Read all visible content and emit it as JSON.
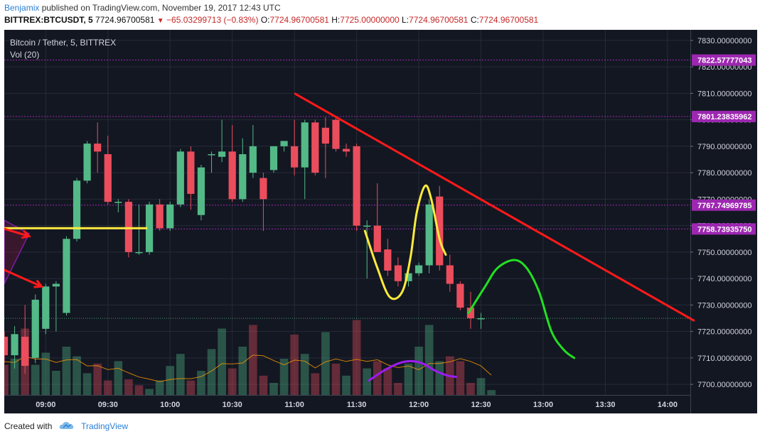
{
  "header": {
    "user": "Benjamix",
    "published_text": "published on TradingView.com, November 19, 2017 12:43 UTC",
    "symbol": "BITTREX:BTCUSDT, 5",
    "last": "7724.96700581",
    "change": "−65.03299713 (−0.83%)",
    "o_label": "O:",
    "o_value": "7724.96700581",
    "h_label": "H:",
    "h_value": "7725.00000000",
    "l_label": "L:",
    "l_value": "7724.96700581",
    "c_label": "C:",
    "c_value": "7724.96700581"
  },
  "legend": {
    "title": "Bitcoin / Tether, 5, BITTREX",
    "volume": "Vol (20)"
  },
  "footer": {
    "created_with": "Created with",
    "brand": "TradingView",
    "logo_icon": "tradingview-cloud-icon"
  },
  "colors": {
    "background": "#131722",
    "up": "#53b987",
    "down": "#eb4d5c",
    "grid": "#262b38",
    "level_line": "#9c27b0",
    "price_tag": "#9c27b0",
    "trend_red": "#ff1a1a",
    "yellow": "#ffeb3b",
    "green": "#22e022",
    "purple": "#9c1cf0"
  },
  "chart_data": {
    "type": "candlestick",
    "symbol": "BTCUSDT",
    "exchange": "BITTREX",
    "interval_minutes": 5,
    "y_axis": {
      "ylim": [
        7696,
        7834
      ],
      "ticks": [
        "7700.00000000",
        "7710.00000000",
        "7720.00000000",
        "7730.00000000",
        "7740.00000000",
        "7750.00000000",
        "7760.00000000",
        "7770.00000000",
        "7780.00000000",
        "7790.00000000",
        "7800.00000000",
        "7810.00000000",
        "7820.00000000",
        "7830.00000000"
      ],
      "tick_values": [
        7700,
        7710,
        7720,
        7730,
        7740,
        7750,
        7760,
        7770,
        7780,
        7790,
        7800,
        7810,
        7820,
        7830
      ]
    },
    "x_axis": {
      "ticks": [
        "09:00",
        "09:30",
        "10:00",
        "10:30",
        "11:00",
        "11:30",
        "12:00",
        "12:30",
        "13:00",
        "13:30",
        "14:00"
      ],
      "tick_minutes": [
        540,
        570,
        600,
        630,
        660,
        690,
        720,
        750,
        780,
        810,
        840
      ],
      "xlim_minutes": [
        520,
        851
      ]
    },
    "horizontal_levels": [
      {
        "price": 7822.57777043,
        "label": "7822.57777043"
      },
      {
        "price": 7801.23835962,
        "label": "7801.23835962"
      },
      {
        "price": 7767.74969785,
        "label": "7767.74969785"
      },
      {
        "price": 7758.7393575,
        "label": "7758.73935750"
      }
    ],
    "last_price": 7724.96700581,
    "candles": [
      {
        "t": 520,
        "o": 7718,
        "h": 7720,
        "l": 7708,
        "c": 7711
      },
      {
        "t": 525,
        "o": 7711,
        "h": 7722,
        "l": 7706,
        "c": 7719
      },
      {
        "t": 530,
        "o": 7718,
        "h": 7730,
        "l": 7704,
        "c": 7707
      },
      {
        "t": 535,
        "o": 7710,
        "h": 7734,
        "l": 7708,
        "c": 7732
      },
      {
        "t": 540,
        "o": 7721,
        "h": 7738,
        "l": 7719,
        "c": 7737
      },
      {
        "t": 545,
        "o": 7737,
        "h": 7739,
        "l": 7720,
        "c": 7738
      },
      {
        "t": 550,
        "o": 7727,
        "h": 7756,
        "l": 7726,
        "c": 7755
      },
      {
        "t": 555,
        "o": 7755,
        "h": 7778,
        "l": 7754,
        "c": 7777
      },
      {
        "t": 560,
        "o": 7777,
        "h": 7792,
        "l": 7776,
        "c": 7791
      },
      {
        "t": 565,
        "o": 7791,
        "h": 7799,
        "l": 7780,
        "c": 7788
      },
      {
        "t": 570,
        "o": 7787,
        "h": 7794,
        "l": 7768,
        "c": 7769
      },
      {
        "t": 575,
        "o": 7769,
        "h": 7770,
        "l": 7765,
        "c": 7769
      },
      {
        "t": 580,
        "o": 7769,
        "h": 7770,
        "l": 7748,
        "c": 7750
      },
      {
        "t": 585,
        "o": 7750,
        "h": 7768,
        "l": 7749,
        "c": 7750
      },
      {
        "t": 590,
        "o": 7750,
        "h": 7769,
        "l": 7749,
        "c": 7768
      },
      {
        "t": 595,
        "o": 7768,
        "h": 7770,
        "l": 7758,
        "c": 7759
      },
      {
        "t": 600,
        "o": 7759,
        "h": 7769,
        "l": 7758,
        "c": 7768
      },
      {
        "t": 605,
        "o": 7768,
        "h": 7789,
        "l": 7767,
        "c": 7788
      },
      {
        "t": 610,
        "o": 7788,
        "h": 7790,
        "l": 7766,
        "c": 7772
      },
      {
        "t": 615,
        "o": 7764,
        "h": 7783,
        "l": 7762,
        "c": 7782
      },
      {
        "t": 620,
        "o": 7787,
        "h": 7788,
        "l": 7780,
        "c": 7787
      },
      {
        "t": 625,
        "o": 7786,
        "h": 7800,
        "l": 7784,
        "c": 7788
      },
      {
        "t": 630,
        "o": 7788,
        "h": 7798,
        "l": 7769,
        "c": 7770
      },
      {
        "t": 635,
        "o": 7770,
        "h": 7793,
        "l": 7769,
        "c": 7787
      },
      {
        "t": 640,
        "o": 7780,
        "h": 7798,
        "l": 7778,
        "c": 7790
      },
      {
        "t": 645,
        "o": 7778,
        "h": 7780,
        "l": 7758,
        "c": 7770
      },
      {
        "t": 650,
        "o": 7781,
        "h": 7790,
        "l": 7780,
        "c": 7790
      },
      {
        "t": 655,
        "o": 7790,
        "h": 7792,
        "l": 7788,
        "c": 7792
      },
      {
        "t": 660,
        "o": 7790,
        "h": 7800,
        "l": 7779,
        "c": 7782
      },
      {
        "t": 665,
        "o": 7782,
        "h": 7800,
        "l": 7770,
        "c": 7799
      },
      {
        "t": 670,
        "o": 7799,
        "h": 7800,
        "l": 7779,
        "c": 7780
      },
      {
        "t": 675,
        "o": 7797,
        "h": 7801,
        "l": 7778,
        "c": 7791
      },
      {
        "t": 680,
        "o": 7800,
        "h": 7801,
        "l": 7788,
        "c": 7789
      },
      {
        "t": 685,
        "o": 7789,
        "h": 7791,
        "l": 7786,
        "c": 7788
      },
      {
        "t": 690,
        "o": 7790,
        "h": 7791,
        "l": 7758,
        "c": 7760
      },
      {
        "t": 695,
        "o": 7760,
        "h": 7762,
        "l": 7740,
        "c": 7760
      },
      {
        "t": 700,
        "o": 7760,
        "h": 7776,
        "l": 7750,
        "c": 7750
      },
      {
        "t": 705,
        "o": 7751,
        "h": 7755,
        "l": 7741,
        "c": 7743
      },
      {
        "t": 710,
        "o": 7745,
        "h": 7748,
        "l": 7737,
        "c": 7739
      },
      {
        "t": 715,
        "o": 7739,
        "h": 7745,
        "l": 7737,
        "c": 7742
      },
      {
        "t": 720,
        "o": 7742,
        "h": 7746,
        "l": 7741,
        "c": 7745
      },
      {
        "t": 725,
        "o": 7745,
        "h": 7770,
        "l": 7742,
        "c": 7768
      },
      {
        "t": 730,
        "o": 7771,
        "h": 7775,
        "l": 7743,
        "c": 7745
      },
      {
        "t": 735,
        "o": 7745,
        "h": 7749,
        "l": 7735,
        "c": 7738
      },
      {
        "t": 740,
        "o": 7738,
        "h": 7739,
        "l": 7728,
        "c": 7729
      },
      {
        "t": 745,
        "o": 7729,
        "h": 7735,
        "l": 7721,
        "c": 7725
      },
      {
        "t": 750,
        "o": 7725,
        "h": 7727,
        "l": 7721,
        "c": 7725
      }
    ],
    "volumes": [
      {
        "t": 515,
        "v": 0.4,
        "dir": "down"
      },
      {
        "t": 520,
        "v": 0.25,
        "dir": "down"
      },
      {
        "t": 525,
        "v": 0.3,
        "dir": "up"
      },
      {
        "t": 530,
        "v": 0.55,
        "dir": "down"
      },
      {
        "t": 535,
        "v": 0.25,
        "dir": "up"
      },
      {
        "t": 540,
        "v": 0.35,
        "dir": "up"
      },
      {
        "t": 545,
        "v": 0.2,
        "dir": "up"
      },
      {
        "t": 550,
        "v": 0.4,
        "dir": "up"
      },
      {
        "t": 555,
        "v": 0.32,
        "dir": "up"
      },
      {
        "t": 560,
        "v": 0.18,
        "dir": "up"
      },
      {
        "t": 565,
        "v": 0.26,
        "dir": "down"
      },
      {
        "t": 570,
        "v": 0.12,
        "dir": "down"
      },
      {
        "t": 575,
        "v": 0.28,
        "dir": "up"
      },
      {
        "t": 580,
        "v": 0.13,
        "dir": "down"
      },
      {
        "t": 585,
        "v": 0.08,
        "dir": "down"
      },
      {
        "t": 590,
        "v": 0.05,
        "dir": "up"
      },
      {
        "t": 595,
        "v": 0.12,
        "dir": "up"
      },
      {
        "t": 600,
        "v": 0.24,
        "dir": "up"
      },
      {
        "t": 605,
        "v": 0.34,
        "dir": "up"
      },
      {
        "t": 610,
        "v": 0.12,
        "dir": "down"
      },
      {
        "t": 615,
        "v": 0.2,
        "dir": "up"
      },
      {
        "t": 620,
        "v": 0.38,
        "dir": "up"
      },
      {
        "t": 625,
        "v": 0.55,
        "dir": "up"
      },
      {
        "t": 630,
        "v": 0.22,
        "dir": "down"
      },
      {
        "t": 635,
        "v": 0.4,
        "dir": "up"
      },
      {
        "t": 640,
        "v": 0.58,
        "dir": "down"
      },
      {
        "t": 645,
        "v": 0.16,
        "dir": "down"
      },
      {
        "t": 650,
        "v": 0.1,
        "dir": "up"
      },
      {
        "t": 655,
        "v": 0.3,
        "dir": "up"
      },
      {
        "t": 660,
        "v": 0.5,
        "dir": "down"
      },
      {
        "t": 665,
        "v": 0.34,
        "dir": "up"
      },
      {
        "t": 670,
        "v": 0.18,
        "dir": "down"
      },
      {
        "t": 675,
        "v": 0.52,
        "dir": "up"
      },
      {
        "t": 680,
        "v": 0.26,
        "dir": "down"
      },
      {
        "t": 685,
        "v": 0.16,
        "dir": "up"
      },
      {
        "t": 690,
        "v": 0.62,
        "dir": "down"
      },
      {
        "t": 695,
        "v": 0.22,
        "dir": "up"
      },
      {
        "t": 700,
        "v": 0.28,
        "dir": "down"
      },
      {
        "t": 705,
        "v": 0.22,
        "dir": "down"
      },
      {
        "t": 710,
        "v": 0.1,
        "dir": "down"
      },
      {
        "t": 715,
        "v": 0.26,
        "dir": "up"
      },
      {
        "t": 720,
        "v": 0.4,
        "dir": "up"
      },
      {
        "t": 725,
        "v": 0.58,
        "dir": "up"
      },
      {
        "t": 730,
        "v": 0.28,
        "dir": "up"
      },
      {
        "t": 735,
        "v": 0.32,
        "dir": "down"
      },
      {
        "t": 740,
        "v": 0.28,
        "dir": "down"
      },
      {
        "t": 745,
        "v": 0.1,
        "dir": "down"
      },
      {
        "t": 750,
        "v": 0.14,
        "dir": "up"
      },
      {
        "t": 755,
        "v": 0.04,
        "dir": "up"
      }
    ],
    "annotations": {
      "red_trendline": [
        [
          660,
          7810
        ],
        [
          853,
          7724
        ]
      ],
      "yellow_horizontal": [
        [
          520,
          7759
        ],
        [
          589,
          7759
        ]
      ],
      "yellow_wave": [
        [
          694,
          7758
        ],
        [
          700,
          7744
        ],
        [
          706,
          7733
        ],
        [
          712,
          7735
        ],
        [
          716,
          7748
        ],
        [
          719,
          7765
        ],
        [
          723,
          7775
        ],
        [
          726,
          7770
        ],
        [
          730,
          7755
        ],
        [
          733,
          7749
        ]
      ],
      "green_projection": [
        [
          744,
          7727
        ],
        [
          752,
          7737
        ],
        [
          758,
          7744
        ],
        [
          766,
          7747
        ],
        [
          772,
          7744
        ],
        [
          778,
          7735
        ],
        [
          784,
          7720
        ],
        [
          790,
          7713
        ],
        [
          795,
          7710
        ]
      ],
      "purple_wave": [
        [
          696,
          0.12
        ],
        [
          703,
          0.2
        ],
        [
          710,
          0.26
        ],
        [
          716,
          0.28
        ],
        [
          722,
          0.26
        ],
        [
          728,
          0.2
        ],
        [
          734,
          0.16
        ],
        [
          738,
          0.15
        ]
      ],
      "red_arrows": [
        [
          [
            515,
            7760
          ],
          [
            532,
            7756
          ]
        ],
        [
          [
            515,
            7745
          ],
          [
            538,
            7737
          ]
        ]
      ]
    }
  }
}
